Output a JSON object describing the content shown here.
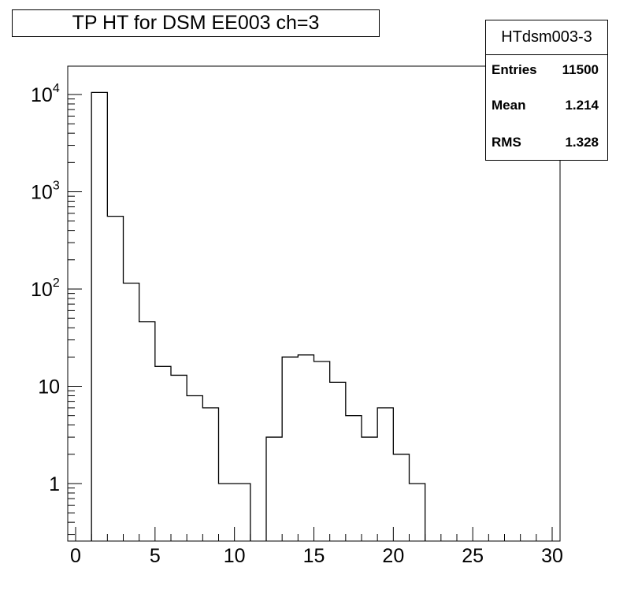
{
  "chart_data": {
    "type": "bar",
    "title": "TP HT for DSM EE003 ch=3",
    "xlabel": "",
    "ylabel": "",
    "yscale": "log",
    "xlim": [
      0,
      30
    ],
    "ylim": [
      0.25,
      20000
    ],
    "bin_edges": [
      0,
      1,
      2,
      3,
      4,
      5,
      6,
      7,
      8,
      9,
      10,
      11,
      12,
      13,
      14,
      15,
      16,
      17,
      18,
      19,
      20,
      21,
      22,
      23,
      24,
      25,
      26,
      27,
      28,
      29,
      30
    ],
    "values": [
      0,
      10500,
      560,
      115,
      46,
      16,
      13,
      8,
      6,
      1,
      1,
      0,
      3,
      20,
      21,
      18,
      11,
      5,
      3,
      6,
      2,
      1,
      0,
      0,
      0,
      0,
      0,
      0,
      0,
      0
    ],
    "x_ticks": [
      "0",
      "5",
      "10",
      "15",
      "20",
      "25",
      "30"
    ],
    "y_ticks": [
      {
        "base": "10",
        "exp": "4"
      },
      {
        "base": "10",
        "exp": "3"
      },
      {
        "base": "10",
        "exp": "2"
      },
      {
        "base": "10",
        "exp": ""
      },
      {
        "base": "1",
        "exp": ""
      }
    ],
    "stats": {
      "name": "HTdsm003-3",
      "entries_label": "Entries",
      "entries": "11500",
      "mean_label": "Mean",
      "mean": "1.214",
      "rms_label": "RMS",
      "rms": "1.328"
    },
    "grid": false,
    "line_color": "#000000"
  }
}
